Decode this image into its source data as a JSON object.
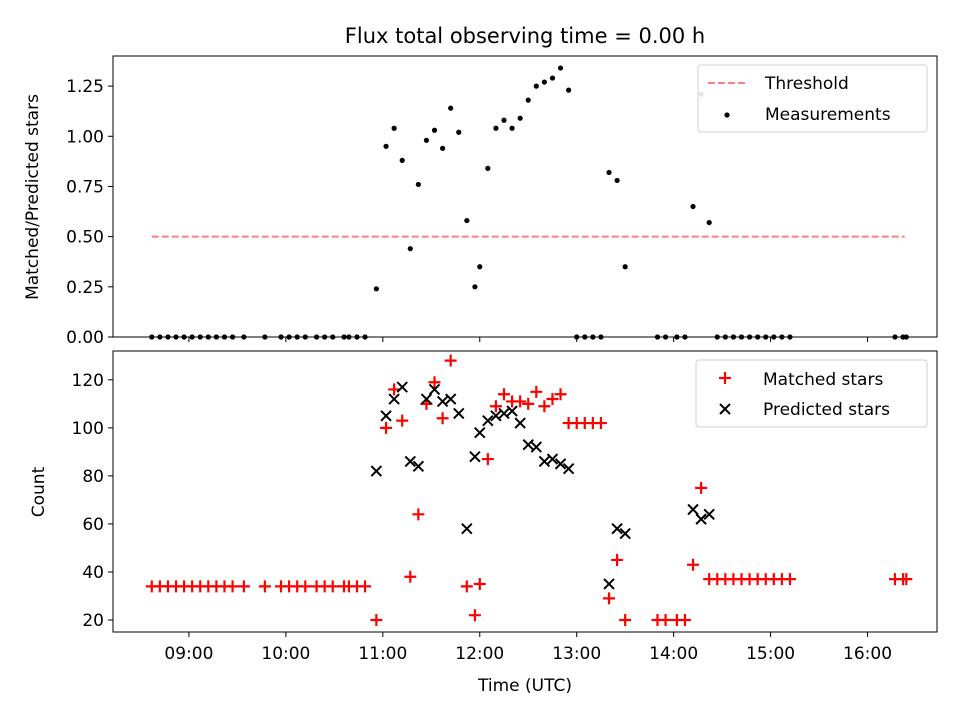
{
  "chart_data": [
    {
      "type": "scatter",
      "title": "Flux total observing time = 0.00 h",
      "ylabel": "Matched/Predicted stars",
      "xlabel": "",
      "ylim": [
        0,
        1.4
      ],
      "xlim": [
        "08:13",
        "16:43"
      ],
      "yticks": [
        "0.00",
        "0.25",
        "0.50",
        "0.75",
        "1.00",
        "1.25"
      ],
      "legend_placement": "top-right",
      "series": [
        {
          "name": "Threshold",
          "kind": "dashed-line",
          "color": "#ff7f7f",
          "points": [
            [
              "08:37",
              0.5
            ],
            [
              "16:23",
              0.5
            ]
          ]
        },
        {
          "name": "Measurements",
          "kind": "dots",
          "color": "#000000",
          "points": [
            [
              "08:37",
              0
            ],
            [
              "08:42",
              0
            ],
            [
              "08:47",
              0
            ],
            [
              "08:52",
              0
            ],
            [
              "08:57",
              0
            ],
            [
              "09:02",
              0
            ],
            [
              "09:07",
              0
            ],
            [
              "09:12",
              0
            ],
            [
              "09:17",
              0
            ],
            [
              "09:22",
              0
            ],
            [
              "09:27",
              0
            ],
            [
              "09:34",
              0
            ],
            [
              "09:47",
              0
            ],
            [
              "09:57",
              0
            ],
            [
              "10:02",
              0
            ],
            [
              "10:07",
              0
            ],
            [
              "10:12",
              0
            ],
            [
              "10:19",
              0
            ],
            [
              "10:24",
              0
            ],
            [
              "10:29",
              0
            ],
            [
              "10:36",
              0
            ],
            [
              "10:39",
              0
            ],
            [
              "10:44",
              0
            ],
            [
              "10:49",
              0
            ],
            [
              "10:56",
              0.24
            ],
            [
              "11:02",
              0.95
            ],
            [
              "11:07",
              1.04
            ],
            [
              "11:12",
              0.88
            ],
            [
              "11:17",
              0.44
            ],
            [
              "11:22",
              0.76
            ],
            [
              "11:27",
              0.98
            ],
            [
              "11:32",
              1.03
            ],
            [
              "11:37",
              0.94
            ],
            [
              "11:42",
              1.14
            ],
            [
              "11:47",
              1.02
            ],
            [
              "11:52",
              0.58
            ],
            [
              "11:57",
              0.25
            ],
            [
              "12:00",
              0.35
            ],
            [
              "12:05",
              0.84
            ],
            [
              "12:10",
              1.04
            ],
            [
              "12:15",
              1.08
            ],
            [
              "12:20",
              1.04
            ],
            [
              "12:25",
              1.09
            ],
            [
              "12:30",
              1.18
            ],
            [
              "12:35",
              1.25
            ],
            [
              "12:40",
              1.27
            ],
            [
              "12:45",
              1.29
            ],
            [
              "12:50",
              1.34
            ],
            [
              "12:55",
              1.23
            ],
            [
              "13:00",
              0
            ],
            [
              "13:05",
              0
            ],
            [
              "13:10",
              0
            ],
            [
              "13:15",
              0
            ],
            [
              "13:20",
              0.82
            ],
            [
              "13:25",
              0.78
            ],
            [
              "13:30",
              0.35
            ],
            [
              "13:50",
              0
            ],
            [
              "13:55",
              0
            ],
            [
              "14:02",
              0
            ],
            [
              "14:07",
              0
            ],
            [
              "14:12",
              0.65
            ],
            [
              "14:17",
              1.21
            ],
            [
              "14:22",
              0.57
            ],
            [
              "14:27",
              0
            ],
            [
              "14:32",
              0
            ],
            [
              "14:37",
              0
            ],
            [
              "14:42",
              0
            ],
            [
              "14:47",
              0
            ],
            [
              "14:52",
              0
            ],
            [
              "14:57",
              0
            ],
            [
              "15:02",
              0
            ],
            [
              "15:07",
              0
            ],
            [
              "15:12",
              0
            ],
            [
              "16:17",
              0
            ],
            [
              "16:22",
              0
            ],
            [
              "16:24",
              0
            ]
          ]
        }
      ]
    },
    {
      "type": "scatter",
      "title": "",
      "ylabel": "Count",
      "xlabel": "Time (UTC)",
      "ylim": [
        15,
        132
      ],
      "xlim": [
        "08:13",
        "16:43"
      ],
      "yticks": [
        "20",
        "40",
        "60",
        "80",
        "100",
        "120"
      ],
      "xticks": [
        "09:00",
        "10:00",
        "11:00",
        "12:00",
        "13:00",
        "14:00",
        "15:00",
        "16:00"
      ],
      "legend_placement": "top-right",
      "series": [
        {
          "name": "Matched stars",
          "kind": "plus",
          "color": "#ff0000",
          "points": [
            [
              "08:37",
              34
            ],
            [
              "08:42",
              34
            ],
            [
              "08:47",
              34
            ],
            [
              "08:52",
              34
            ],
            [
              "08:57",
              34
            ],
            [
              "09:02",
              34
            ],
            [
              "09:07",
              34
            ],
            [
              "09:12",
              34
            ],
            [
              "09:17",
              34
            ],
            [
              "09:22",
              34
            ],
            [
              "09:27",
              34
            ],
            [
              "09:34",
              34
            ],
            [
              "09:47",
              34
            ],
            [
              "09:57",
              34
            ],
            [
              "10:02",
              34
            ],
            [
              "10:07",
              34
            ],
            [
              "10:12",
              34
            ],
            [
              "10:19",
              34
            ],
            [
              "10:24",
              34
            ],
            [
              "10:29",
              34
            ],
            [
              "10:36",
              34
            ],
            [
              "10:39",
              34
            ],
            [
              "10:44",
              34
            ],
            [
              "10:49",
              34
            ],
            [
              "10:56",
              20
            ],
            [
              "11:02",
              100
            ],
            [
              "11:07",
              116
            ],
            [
              "11:12",
              103
            ],
            [
              "11:17",
              38
            ],
            [
              "11:22",
              64
            ],
            [
              "11:27",
              110
            ],
            [
              "11:32",
              119
            ],
            [
              "11:37",
              104
            ],
            [
              "11:42",
              128
            ],
            [
              "11:52",
              34
            ],
            [
              "11:57",
              22
            ],
            [
              "12:00",
              35
            ],
            [
              "12:05",
              87
            ],
            [
              "12:10",
              109
            ],
            [
              "12:15",
              114
            ],
            [
              "12:20",
              111
            ],
            [
              "12:25",
              111
            ],
            [
              "12:30",
              110
            ],
            [
              "12:35",
              115
            ],
            [
              "12:40",
              109
            ],
            [
              "12:45",
              112
            ],
            [
              "12:50",
              114
            ],
            [
              "12:55",
              102
            ],
            [
              "13:00",
              102
            ],
            [
              "13:05",
              102
            ],
            [
              "13:10",
              102
            ],
            [
              "13:15",
              102
            ],
            [
              "13:20",
              29
            ],
            [
              "13:25",
              45
            ],
            [
              "13:30",
              20
            ],
            [
              "13:50",
              20
            ],
            [
              "13:55",
              20
            ],
            [
              "14:02",
              20
            ],
            [
              "14:07",
              20
            ],
            [
              "14:12",
              43
            ],
            [
              "14:17",
              75
            ],
            [
              "14:22",
              37
            ],
            [
              "14:27",
              37
            ],
            [
              "14:32",
              37
            ],
            [
              "14:37",
              37
            ],
            [
              "14:42",
              37
            ],
            [
              "14:47",
              37
            ],
            [
              "14:52",
              37
            ],
            [
              "14:57",
              37
            ],
            [
              "15:02",
              37
            ],
            [
              "15:07",
              37
            ],
            [
              "15:12",
              37
            ],
            [
              "16:17",
              37
            ],
            [
              "16:22",
              37
            ],
            [
              "16:24",
              37
            ]
          ]
        },
        {
          "name": "Predicted stars",
          "kind": "x",
          "color": "#000000",
          "points": [
            [
              "10:56",
              82
            ],
            [
              "11:02",
              105
            ],
            [
              "11:07",
              112
            ],
            [
              "11:12",
              117
            ],
            [
              "11:17",
              86
            ],
            [
              "11:22",
              84
            ],
            [
              "11:27",
              112
            ],
            [
              "11:32",
              116
            ],
            [
              "11:37",
              111
            ],
            [
              "11:42",
              112
            ],
            [
              "11:47",
              106
            ],
            [
              "11:52",
              58
            ],
            [
              "11:57",
              88
            ],
            [
              "12:00",
              98
            ],
            [
              "12:05",
              103
            ],
            [
              "12:10",
              105
            ],
            [
              "12:15",
              106
            ],
            [
              "12:20",
              107
            ],
            [
              "12:25",
              102
            ],
            [
              "12:30",
              93
            ],
            [
              "12:35",
              92
            ],
            [
              "12:40",
              86
            ],
            [
              "12:45",
              87
            ],
            [
              "12:50",
              85
            ],
            [
              "12:55",
              83
            ],
            [
              "13:20",
              35
            ],
            [
              "13:25",
              58
            ],
            [
              "13:30",
              56
            ],
            [
              "14:12",
              66
            ],
            [
              "14:17",
              62
            ],
            [
              "14:22",
              64
            ]
          ]
        }
      ]
    }
  ]
}
